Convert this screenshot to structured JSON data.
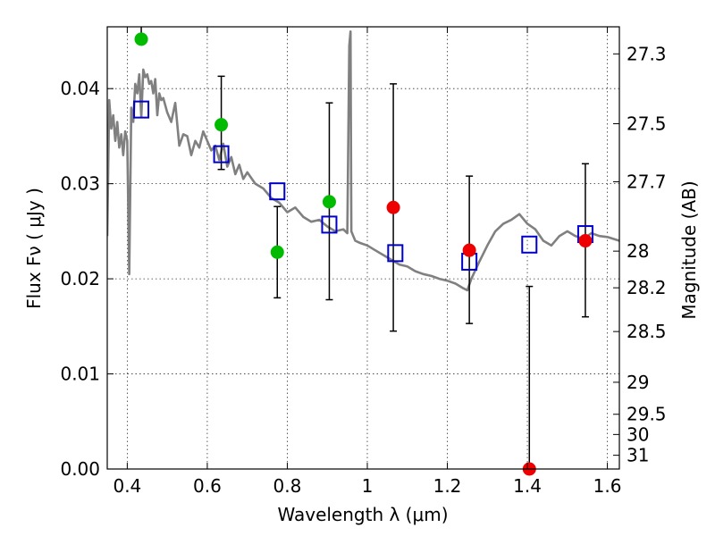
{
  "chart_data": {
    "type": "scatter",
    "xlabel": "Wavelength  λ (μm)",
    "ylabel": "Flux  Fν  ( μJy )",
    "ylabel_right": "Magnitude (AB)",
    "xlim": [
      0.35,
      1.63
    ],
    "ylim": [
      0.0,
      0.0465
    ],
    "x_ticks": [
      "0.4",
      "0.6",
      "0.8",
      "1",
      "1.2",
      "1.4",
      "1.6"
    ],
    "y_ticks": [
      "0.00",
      "0.01",
      "0.02",
      "0.03",
      "0.04"
    ],
    "right_ticks": [
      {
        "label": "27.3",
        "mag": 27.3
      },
      {
        "label": "27.5",
        "mag": 27.5
      },
      {
        "label": "27.7",
        "mag": 27.7
      },
      {
        "label": "28",
        "mag": 28.0
      },
      {
        "label": "28.2",
        "mag": 28.2
      },
      {
        "label": "28.5",
        "mag": 28.5
      },
      {
        "label": "29",
        "mag": 29.0
      },
      {
        "label": "29.5",
        "mag": 29.5
      },
      {
        "label": "30",
        "mag": 30.0
      },
      {
        "label": "31",
        "mag": 31.0
      }
    ],
    "grid": true,
    "colors": {
      "model": "#808080",
      "observed_detection": "#00bb00",
      "observed_ir": "#ee0000",
      "synthetic": "#0000cc",
      "errorbar": "#000000"
    },
    "series": [
      {
        "kind": "line",
        "x": [
          0.35,
          0.355,
          0.36,
          0.365,
          0.37,
          0.375,
          0.38,
          0.385,
          0.39,
          0.395,
          0.4,
          0.405,
          0.41,
          0.415,
          0.42,
          0.425,
          0.43,
          0.435,
          0.44,
          0.445,
          0.45,
          0.455,
          0.46,
          0.465,
          0.47,
          0.475,
          0.48,
          0.485,
          0.49,
          0.5,
          0.51,
          0.52,
          0.53,
          0.54,
          0.55,
          0.56,
          0.57,
          0.58,
          0.59,
          0.6,
          0.61,
          0.62,
          0.63,
          0.64,
          0.65,
          0.66,
          0.67,
          0.68,
          0.69,
          0.7,
          0.72,
          0.74,
          0.76,
          0.78,
          0.8,
          0.82,
          0.84,
          0.86,
          0.88,
          0.9,
          0.92,
          0.94,
          0.95,
          0.955,
          0.958,
          0.96,
          0.965,
          0.97,
          0.98,
          1.0,
          1.02,
          1.04,
          1.06,
          1.08,
          1.1,
          1.12,
          1.14,
          1.16,
          1.18,
          1.2,
          1.22,
          1.24,
          1.25,
          1.26,
          1.28,
          1.3,
          1.32,
          1.34,
          1.36,
          1.38,
          1.4,
          1.42,
          1.44,
          1.46,
          1.48,
          1.5,
          1.52,
          1.54,
          1.56,
          1.58,
          1.6,
          1.63
        ],
        "y": [
          0.0245,
          0.0388,
          0.0358,
          0.0372,
          0.0345,
          0.0365,
          0.0338,
          0.0352,
          0.033,
          0.0355,
          0.0345,
          0.0205,
          0.038,
          0.0365,
          0.0405,
          0.0395,
          0.0415,
          0.037,
          0.042,
          0.0412,
          0.0415,
          0.0405,
          0.0408,
          0.0395,
          0.041,
          0.0372,
          0.0395,
          0.0388,
          0.039,
          0.0375,
          0.0365,
          0.0385,
          0.034,
          0.0352,
          0.035,
          0.033,
          0.0345,
          0.0338,
          0.0355,
          0.0345,
          0.0335,
          0.034,
          0.0325,
          0.0342,
          0.0318,
          0.0328,
          0.031,
          0.032,
          0.0305,
          0.0312,
          0.03,
          0.0295,
          0.0285,
          0.028,
          0.027,
          0.0275,
          0.0265,
          0.026,
          0.0262,
          0.0255,
          0.025,
          0.0252,
          0.0248,
          0.0445,
          0.046,
          0.025,
          0.0245,
          0.024,
          0.0238,
          0.0235,
          0.023,
          0.0225,
          0.022,
          0.0215,
          0.0213,
          0.0208,
          0.0205,
          0.0203,
          0.02,
          0.0198,
          0.0195,
          0.019,
          0.0188,
          0.02,
          0.0218,
          0.0235,
          0.025,
          0.0258,
          0.0262,
          0.0268,
          0.0258,
          0.0252,
          0.024,
          0.0235,
          0.0245,
          0.025,
          0.0245,
          0.0242,
          0.0248,
          0.0245,
          0.0244,
          0.024
        ]
      },
      {
        "kind": "points",
        "marker": "open-square",
        "x": [
          0.435,
          0.635,
          0.775,
          0.905,
          1.07,
          1.255,
          1.405,
          1.545
        ],
        "y": [
          0.0378,
          0.0331,
          0.0292,
          0.0257,
          0.0227,
          0.0218,
          0.0236,
          0.0247
        ]
      },
      {
        "kind": "points",
        "marker": "filled-circle",
        "x": [
          0.435,
          0.635,
          0.775,
          0.905,
          1.065,
          1.255,
          1.405,
          1.545
        ],
        "y": [
          0.0452,
          0.0362,
          0.0228,
          0.0281,
          0.0275,
          0.023,
          0.0,
          0.024
        ],
        "err_low": [
          0.0452,
          0.0315,
          0.018,
          0.0178,
          0.0145,
          0.0153,
          0.0,
          0.016
        ],
        "err_high": [
          0.0465,
          0.0413,
          0.0276,
          0.0385,
          0.0405,
          0.0308,
          0.0192,
          0.0321
        ],
        "color_key": [
          "observed_detection",
          "observed_detection",
          "observed_detection",
          "observed_detection",
          "observed_ir",
          "observed_ir",
          "observed_ir",
          "observed_ir"
        ]
      }
    ]
  }
}
